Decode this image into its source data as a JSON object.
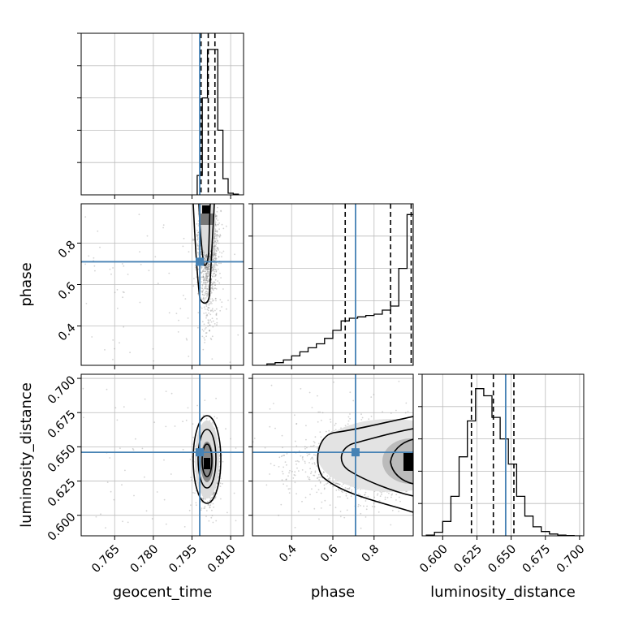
{
  "chart_data": {
    "type": "corner",
    "parameters": [
      "geocent_time",
      "phase",
      "luminosity_distance"
    ],
    "truths": {
      "geocent_time": 0.798,
      "phase": 0.71,
      "luminosity_distance": 0.646
    },
    "colors": {
      "truth": "#4682b4",
      "hist": "#000000",
      "grid": "#bbbbbb",
      "samples": "#808080",
      "quantile": "#000000"
    },
    "grid": true,
    "panels": [
      {
        "id": "hist-geocent_time",
        "type": "histogram",
        "param": "geocent_time",
        "xlim": [
          0.752,
          0.815
        ],
        "xticks": [
          0.765,
          0.78,
          0.795,
          0.81
        ],
        "xtick_labels": [],
        "bin_edges": [
          0.797,
          0.799,
          0.801,
          0.803,
          0.805,
          0.807,
          0.809,
          0.811,
          0.813
        ],
        "density": [
          0.6,
          3.0,
          4.5,
          4.5,
          2.0,
          0.5,
          0.05,
          0.02
        ],
        "ylim": [
          0,
          5
        ],
        "quantiles": [
          0.7985,
          0.8013,
          0.8039
        ],
        "truth": 0.798
      },
      {
        "id": "scatter-geocent_time-phase",
        "type": "2d",
        "x": "geocent_time",
        "y": "phase",
        "xlim": [
          0.752,
          0.815
        ],
        "ylim": [
          0.21,
          0.99
        ],
        "xticks": [
          0.765,
          0.78,
          0.795,
          0.81
        ],
        "xtick_labels": [],
        "yticks": [
          0.4,
          0.6,
          0.8
        ],
        "ytick_labels": [
          "0.4",
          "0.6",
          "0.8"
        ],
        "ylabel": "phase",
        "truth": [
          0.798,
          0.71
        ]
      },
      {
        "id": "hist-phase",
        "type": "histogram",
        "param": "phase",
        "xlim": [
          0.21,
          0.99
        ],
        "xticks": [
          0.4,
          0.6,
          0.8
        ],
        "xtick_labels": [],
        "bin_edges": [
          0.28,
          0.32,
          0.36,
          0.4,
          0.44,
          0.48,
          0.52,
          0.56,
          0.6,
          0.64,
          0.68,
          0.72,
          0.76,
          0.8,
          0.84,
          0.88,
          0.92,
          0.96,
          0.99
        ],
        "density": [
          0.05,
          0.1,
          0.2,
          0.35,
          0.5,
          0.65,
          0.8,
          1.0,
          1.3,
          1.65,
          1.75,
          1.8,
          1.85,
          1.9,
          2.05,
          2.2,
          3.6,
          5.6
        ],
        "ylim": [
          0,
          6
        ],
        "quantiles": [
          0.66,
          0.88,
          0.98
        ],
        "truth": 0.71
      },
      {
        "id": "scatter-geocent_time-luminosity_distance",
        "type": "2d",
        "x": "geocent_time",
        "y": "luminosity_distance",
        "xlim": [
          0.752,
          0.815
        ],
        "ylim": [
          0.585,
          0.703
        ],
        "xticks": [
          0.765,
          0.78,
          0.795,
          0.81
        ],
        "xtick_labels": [
          "0.765",
          "0.780",
          "0.795",
          "0.810"
        ],
        "yticks": [
          0.6,
          0.625,
          0.65,
          0.675,
          0.7
        ],
        "ytick_labels": [
          "0.600",
          "0.625",
          "0.650",
          "0.675",
          "0.700"
        ],
        "xlabel": "geocent_time",
        "ylabel": "luminosity_distance",
        "truth": [
          0.798,
          0.646
        ]
      },
      {
        "id": "scatter-phase-luminosity_distance",
        "type": "2d",
        "x": "phase",
        "y": "luminosity_distance",
        "xlim": [
          0.21,
          0.99
        ],
        "ylim": [
          0.585,
          0.703
        ],
        "xticks": [
          0.4,
          0.6,
          0.8
        ],
        "xtick_labels": [
          "0.4",
          "0.6",
          "0.8"
        ],
        "yticks": [
          0.6,
          0.625,
          0.65,
          0.675,
          0.7
        ],
        "ytick_labels": [],
        "xlabel": "phase",
        "truth": [
          0.71,
          0.646
        ]
      },
      {
        "id": "hist-luminosity_distance",
        "type": "histogram",
        "param": "luminosity_distance",
        "xlim": [
          0.585,
          0.703
        ],
        "xticks": [
          0.6,
          0.625,
          0.65,
          0.675,
          0.7
        ],
        "xtick_labels": [
          "0.600",
          "0.625",
          "0.650",
          "0.675",
          "0.700"
        ],
        "xlabel": "luminosity_distance",
        "bin_edges": [
          0.588,
          0.594,
          0.6,
          0.606,
          0.612,
          0.618,
          0.624,
          0.63,
          0.636,
          0.642,
          0.648,
          0.654,
          0.66,
          0.666,
          0.672,
          0.678,
          0.684,
          0.69,
          0.696,
          0.702
        ],
        "density": [
          0.02,
          0.1,
          0.4,
          1.1,
          2.2,
          3.2,
          4.1,
          3.9,
          3.3,
          2.7,
          2.0,
          1.1,
          0.55,
          0.25,
          0.12,
          0.05,
          0.02,
          0.01,
          0.0
        ],
        "ylim": [
          0,
          4.5
        ],
        "quantiles": [
          0.621,
          0.637,
          0.652
        ],
        "truth": 0.646
      }
    ]
  }
}
